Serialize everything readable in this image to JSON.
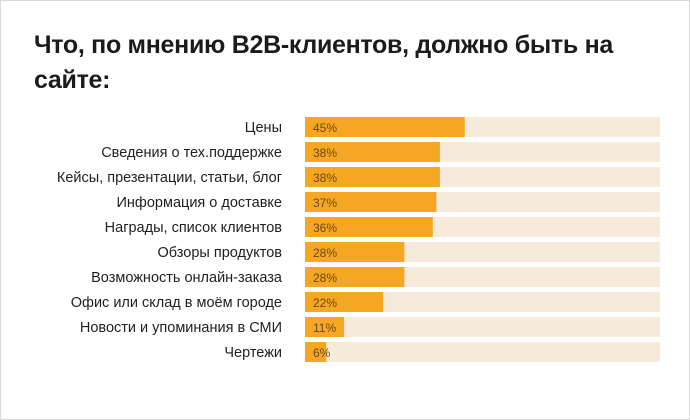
{
  "chart_data": {
    "type": "bar",
    "orientation": "horizontal",
    "title": "Что, по мнению B2B-клиентов, должно быть на сайте:",
    "categories": [
      "Цены",
      "Сведения о тех.поддержке",
      "Кейсы, презентации, статьи, блог",
      "Информация о доставке",
      "Награды, список клиентов",
      "Обзоры продуктов",
      "Возможность онлайн-заказа",
      "Офис или склад в моём городе",
      "Новости и упоминания в СМИ",
      "Чертежи"
    ],
    "values": [
      45,
      38,
      38,
      37,
      36,
      28,
      28,
      22,
      11,
      6
    ],
    "value_labels": [
      "45%",
      "38%",
      "38%",
      "37%",
      "36%",
      "28%",
      "28%",
      "22%",
      "11%",
      "6%"
    ],
    "xlim": [
      0,
      100
    ],
    "grid": false,
    "legend": "none",
    "colors": {
      "bar": "#f5a623",
      "track": "#f6eadb",
      "label_text": "#1f1f1f",
      "value_text": "#6b4a12"
    }
  }
}
